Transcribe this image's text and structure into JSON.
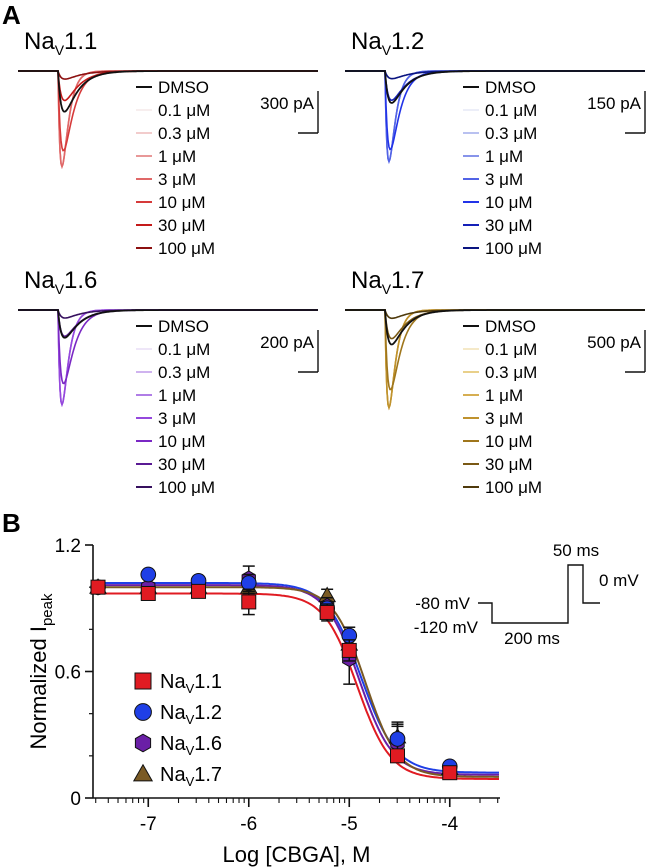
{
  "panels": {
    "a": "A",
    "b": "B"
  },
  "traces": [
    {
      "title_main": "Na",
      "title_sub": "V",
      "title_tail": "1.1",
      "scale_label": "300 pA",
      "palette": [
        "#111111",
        "#f7eeee",
        "#f2cccc",
        "#e89898",
        "#e06868",
        "#d63a3a",
        "#c41a1a",
        "#8c1010"
      ],
      "levels": [
        0.27,
        1.0,
        1.0,
        1.0,
        1.0,
        0.62,
        0.19,
        0.05
      ]
    },
    {
      "title_main": "Na",
      "title_sub": "V",
      "title_tail": "1.2",
      "scale_label": "150 pA",
      "palette": [
        "#111111",
        "#eceef8",
        "#b9c1f0",
        "#8794ea",
        "#5263e6",
        "#2233e8",
        "#1420b8",
        "#0a1480"
      ],
      "levels": [
        0.22,
        1.0,
        1.0,
        1.0,
        1.0,
        0.66,
        0.2,
        0.05
      ]
    },
    {
      "title_main": "Na",
      "title_sub": "V",
      "title_tail": "1.6",
      "scale_label": "200 pA",
      "palette": [
        "#111111",
        "#eee6f8",
        "#cfb3ef",
        "#b07de6",
        "#9548dd",
        "#7a28c4",
        "#5a1a94",
        "#36105e"
      ],
      "levels": [
        0.18,
        1.0,
        1.0,
        1.0,
        1.0,
        0.56,
        0.17,
        0.05
      ]
    },
    {
      "title_main": "Na",
      "title_sub": "V",
      "title_tail": "1.7",
      "scale_label": "500 pA",
      "palette": [
        "#111111",
        "#f5e9c8",
        "#e9d08a",
        "#d6ae52",
        "#bf922e",
        "#9f761c",
        "#7a5914",
        "#4f3a0c"
      ],
      "levels": [
        0.22,
        1.0,
        1.0,
        1.0,
        1.0,
        0.6,
        0.18,
        0.05
      ]
    }
  ],
  "trace_legend": [
    "DMSO",
    "0.1 μM",
    "0.3 μM",
    "1 μM",
    "3 μM",
    "10 μM",
    "30 μM",
    "100 μM"
  ],
  "protocol": {
    "labels": [
      "-80 mV",
      "-120 mV",
      "200 ms",
      "50 ms",
      "0 mV"
    ]
  },
  "chart_data": {
    "type": "scatter",
    "xlabel": "Log [CBGA], M",
    "ylabel_main": "Normalized I",
    "ylabel_sub": "peak",
    "xlim": [
      -7.55,
      -3.5
    ],
    "ylim": [
      0,
      1.2
    ],
    "xticks": [
      -7,
      -6,
      -5,
      -4
    ],
    "yticks": [
      0,
      0.6,
      1.2
    ],
    "x": [
      -7.5,
      -7,
      -6.5,
      -6,
      -5.22,
      -5,
      -4.52,
      -4
    ],
    "series": [
      {
        "name": "Na",
        "name_sub": "V",
        "name_tail": "1.1",
        "marker": "square",
        "color": "#e01b22",
        "values": [
          1.0,
          0.97,
          0.98,
          0.93,
          0.88,
          0.7,
          0.2,
          0.12
        ],
        "errors": [
          0.01,
          0.02,
          0.02,
          0.06,
          0.04,
          0.05,
          0.03,
          0.02
        ],
        "fit": {
          "top": 0.97,
          "bottom": 0.09,
          "logic50": -4.92,
          "hill": 2.6
        }
      },
      {
        "name": "Na",
        "name_sub": "V",
        "name_tail": "1.2",
        "marker": "circle",
        "color": "#1f3fe6",
        "values": [
          1.0,
          1.06,
          1.03,
          1.02,
          0.9,
          0.77,
          0.28,
          0.15
        ],
        "errors": [
          0.01,
          0.02,
          0.02,
          0.04,
          0.03,
          0.04,
          0.06,
          0.02
        ],
        "fit": {
          "top": 1.02,
          "bottom": 0.12,
          "logic50": -4.88,
          "hill": 2.5
        }
      },
      {
        "name": "Na",
        "name_sub": "V",
        "name_tail": "1.6",
        "marker": "hexagon",
        "color": "#6a1fa6",
        "values": [
          1.0,
          1.0,
          1.0,
          1.04,
          0.91,
          0.66,
          0.26,
          0.13
        ],
        "errors": [
          0.01,
          0.02,
          0.02,
          0.06,
          0.04,
          0.12,
          0.09,
          0.03
        ],
        "fit": {
          "top": 1.01,
          "bottom": 0.11,
          "logic50": -4.9,
          "hill": 2.6
        }
      },
      {
        "name": "Na",
        "name_sub": "V",
        "name_tail": "1.7",
        "marker": "triangle",
        "color": "#7a5a24",
        "values": [
          1.0,
          1.0,
          1.0,
          1.0,
          0.96,
          0.73,
          0.29,
          0.14
        ],
        "errors": [
          0.01,
          0.02,
          0.02,
          0.03,
          0.03,
          0.05,
          0.07,
          0.02
        ],
        "fit": {
          "top": 1.0,
          "bottom": 0.1,
          "logic50": -4.84,
          "hill": 2.7
        }
      }
    ]
  }
}
